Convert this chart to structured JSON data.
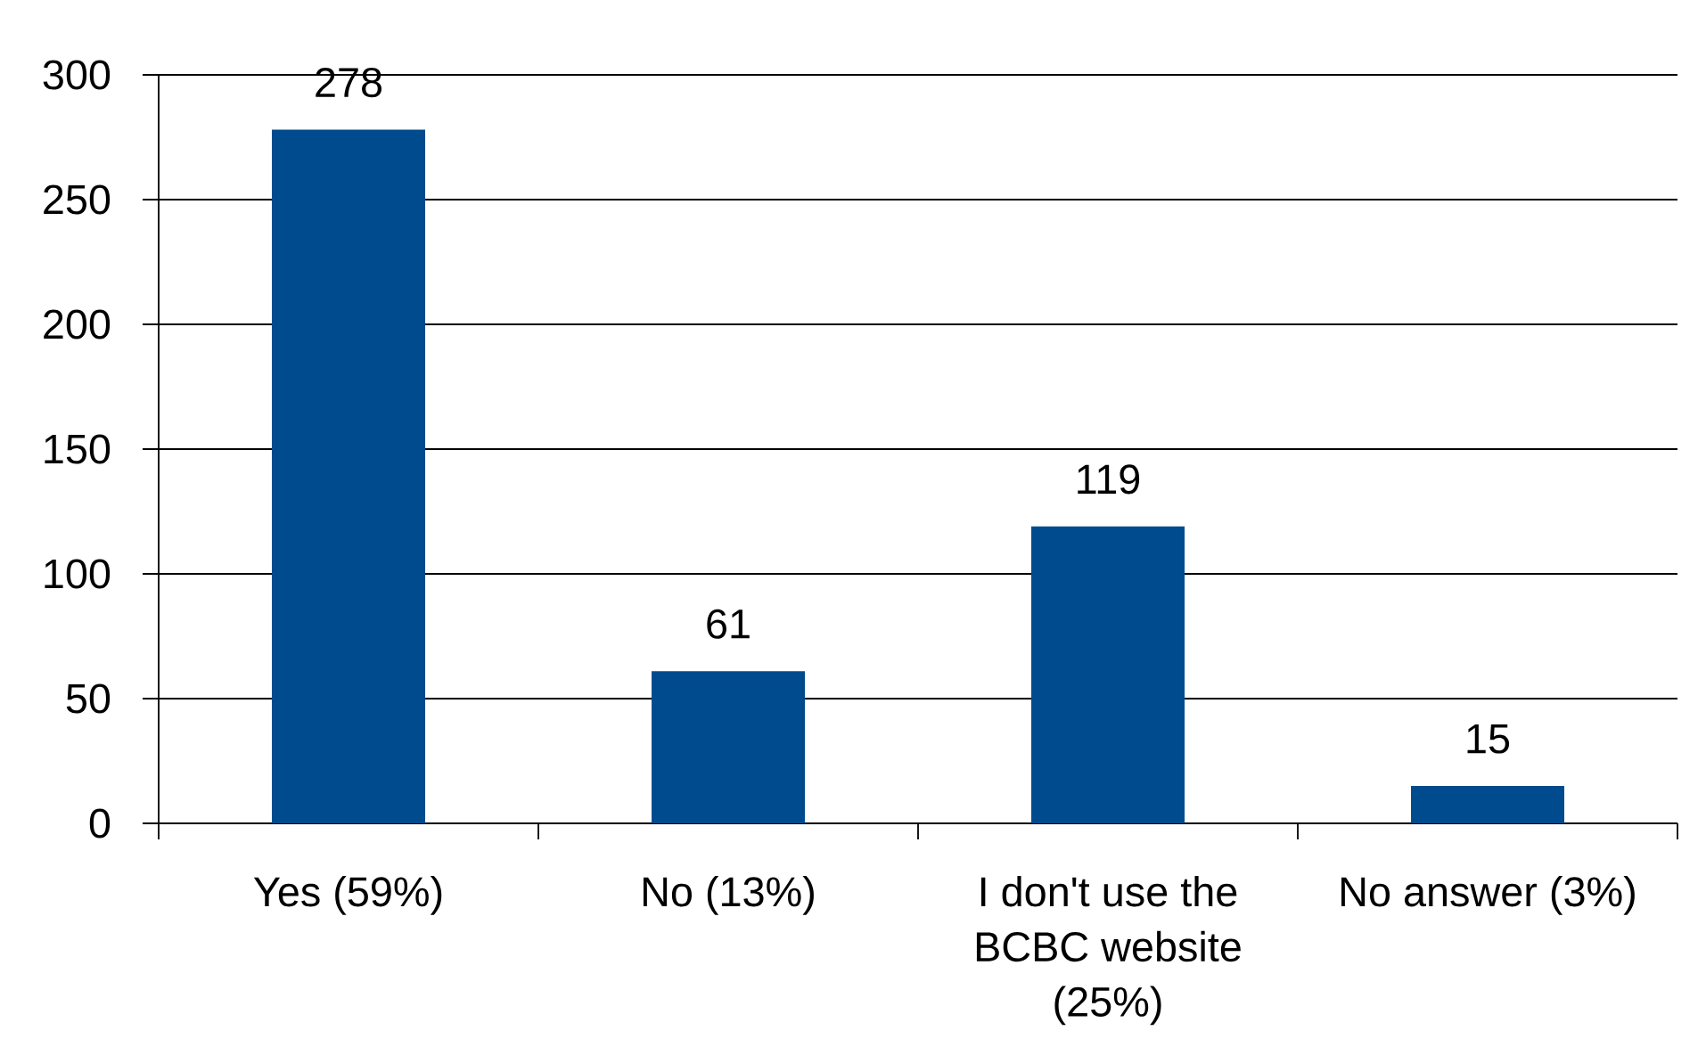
{
  "chart_data": {
    "type": "bar",
    "categories": [
      "Yes (59%)",
      "No (13%)",
      "I don't use the BCBC website (25%)",
      "No answer (3%)"
    ],
    "values": [
      278,
      61,
      119,
      15
    ],
    "color": "#004b8d",
    "ylim": [
      0,
      300
    ],
    "yticks": [
      0,
      50,
      100,
      150,
      200,
      250,
      300
    ],
    "grid": "y",
    "data_labels": true
  }
}
